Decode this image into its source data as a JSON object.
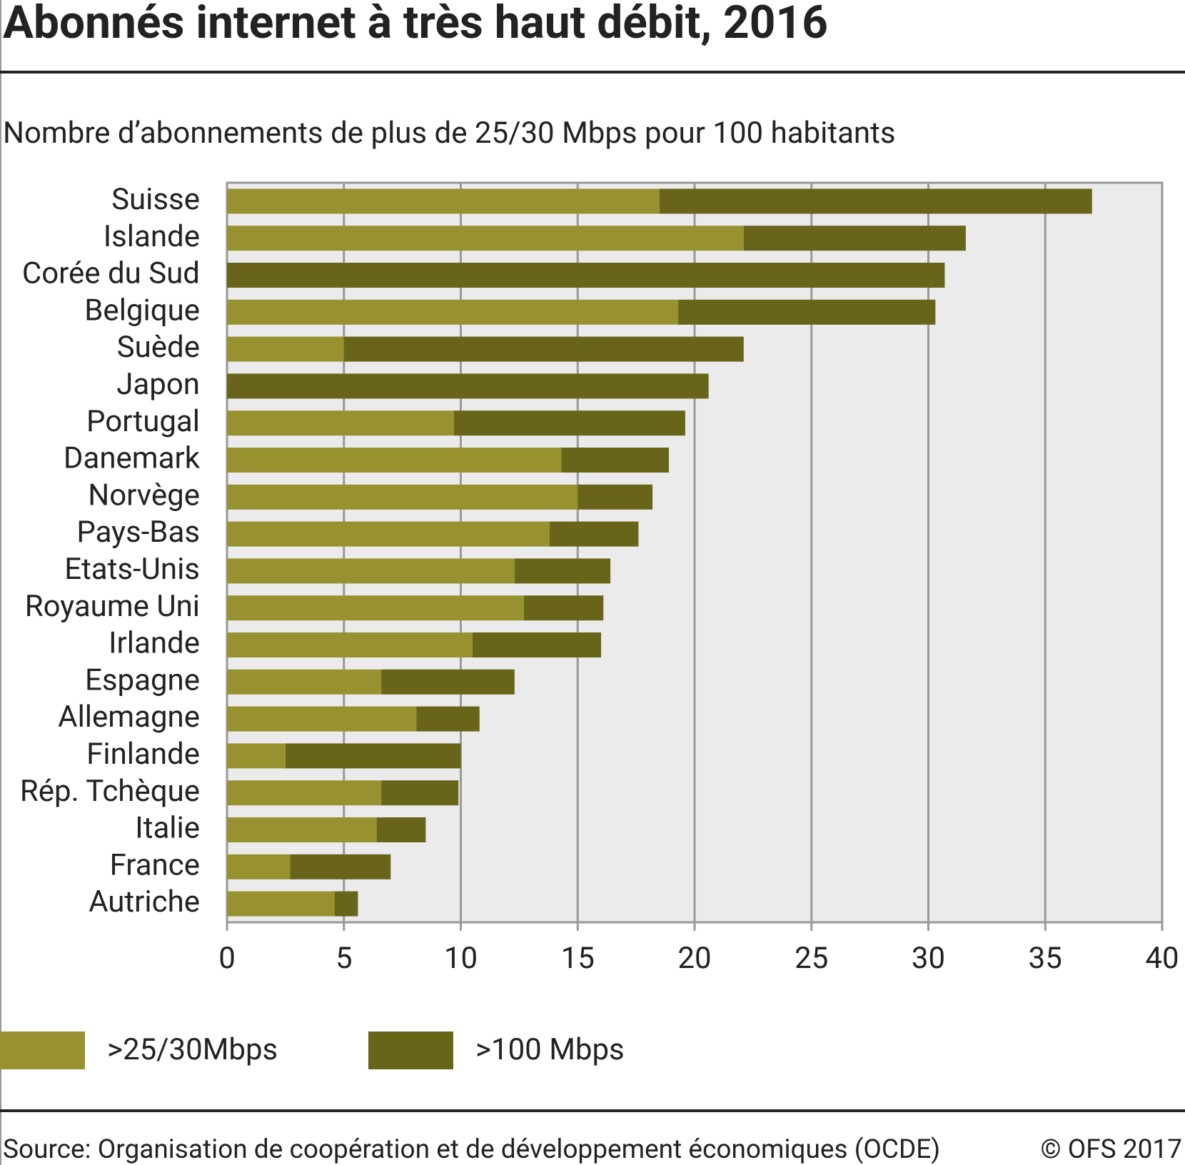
{
  "chart_data": {
    "type": "stacked-bar-horizontal",
    "title": "Abonnés internet à très haut débit, 2016",
    "subtitle": "Nombre d’abonnements de plus de 25/30 Mbps pour 100 habitants",
    "categories": [
      "Suisse",
      "Islande",
      "Corée du Sud",
      "Belgique",
      "Suède",
      "Japon",
      "Portugal",
      "Danemark",
      "Norvège",
      "Pays-Bas",
      "Etats-Unis",
      "Royaume Uni",
      "Irlande",
      "Espagne",
      "Allemagne",
      "Finlande",
      "Rép. Tchèque",
      "Italie",
      "France",
      "Autriche"
    ],
    "series": [
      {
        "name": ">25/30Mbps",
        "color": "#97922f",
        "values": [
          18.5,
          22.1,
          0,
          19.3,
          5.0,
          0,
          9.7,
          14.3,
          15.0,
          13.8,
          12.3,
          12.7,
          10.5,
          6.6,
          8.1,
          2.5,
          6.6,
          6.4,
          2.7,
          4.6
        ]
      },
      {
        "name": ">100 Mbps",
        "color": "#686419",
        "values": [
          18.5,
          9.5,
          30.7,
          11.0,
          17.1,
          20.6,
          9.9,
          4.6,
          3.2,
          3.8,
          4.1,
          3.4,
          5.5,
          5.7,
          2.7,
          7.5,
          3.3,
          2.1,
          4.3,
          1.0
        ]
      }
    ],
    "xlim": [
      0,
      40
    ],
    "xticks": [
      0,
      5,
      10,
      15,
      20,
      25,
      30,
      35,
      40
    ],
    "grid": true,
    "source": "Source: Organisation de coopération et de développement économiques (OCDE)",
    "copyright": "© OFS 2017"
  }
}
